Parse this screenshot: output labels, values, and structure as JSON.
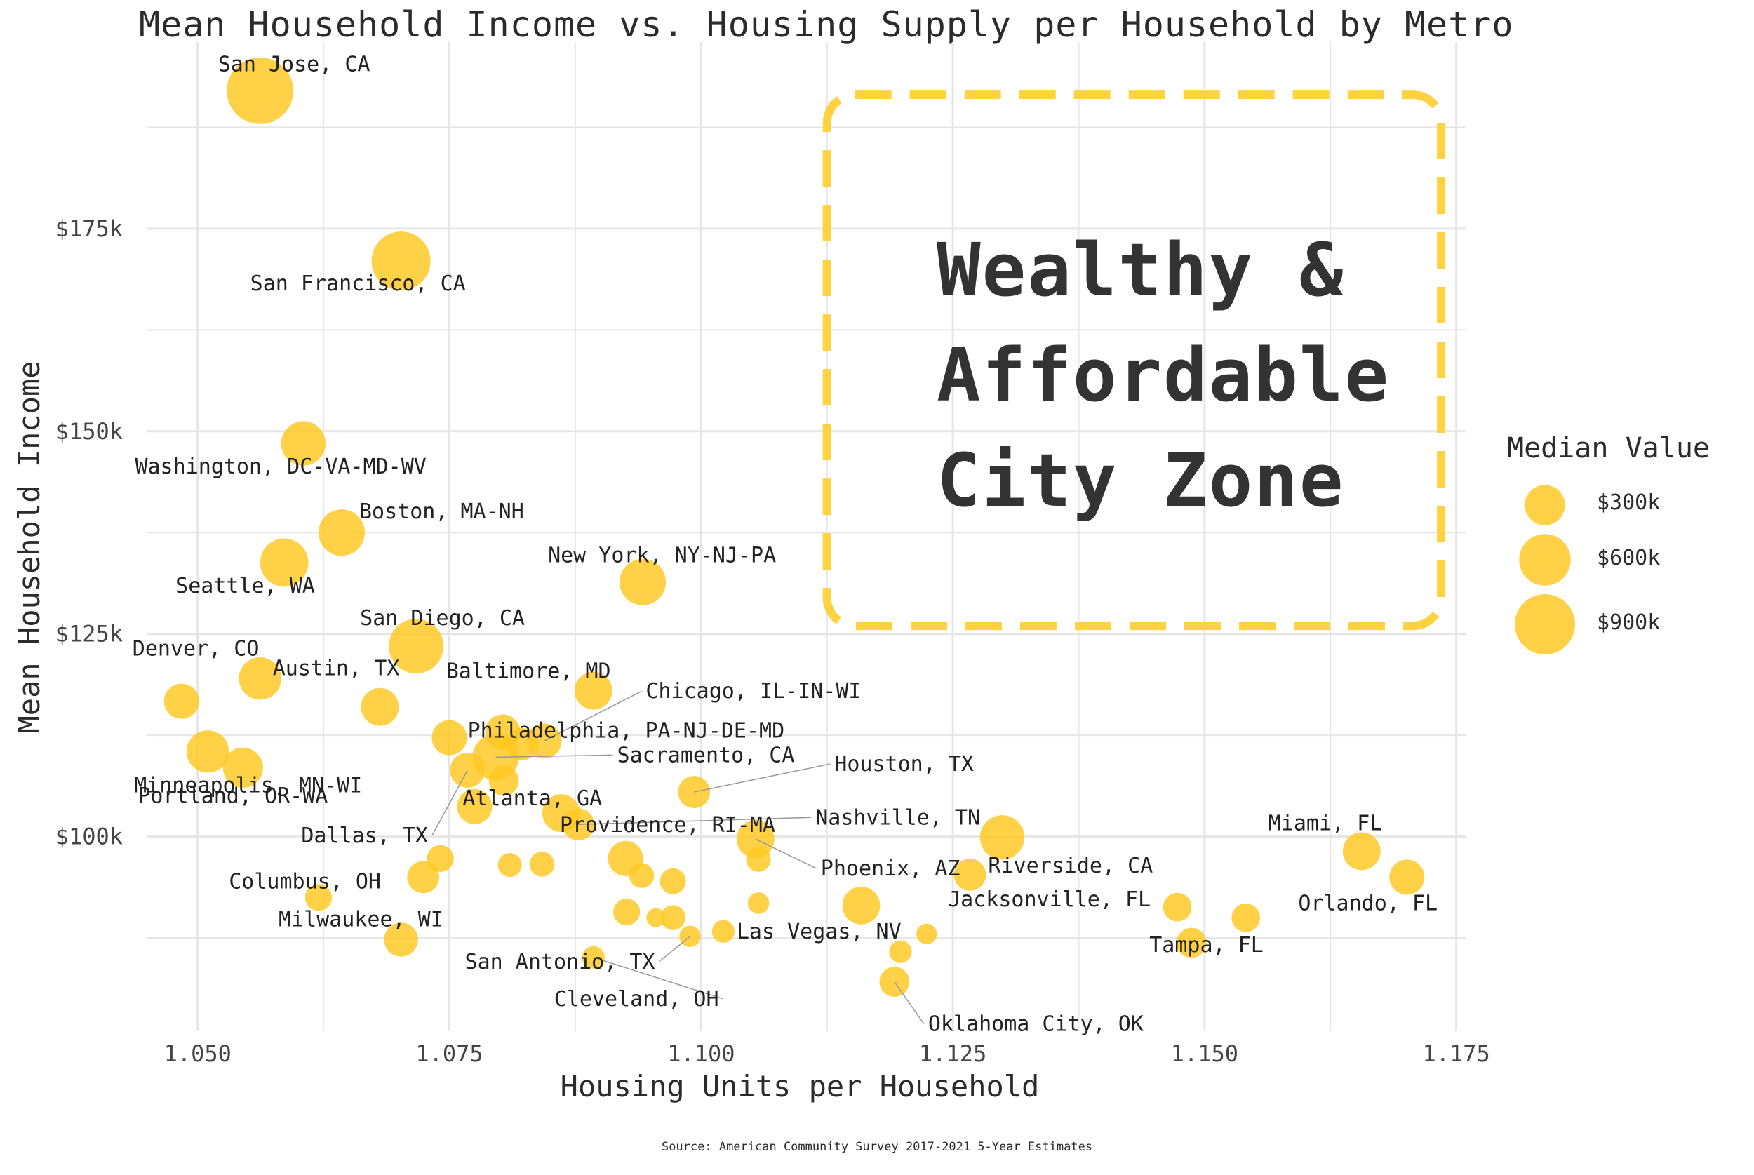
{
  "chart_data": {
    "type": "scatter",
    "title": "Mean Household Income vs. Housing Supply per Household by Metro",
    "xlabel": "Housing Units per Household",
    "ylabel": "Mean Household Income",
    "xlim": [
      1.045,
      1.176
    ],
    "ylim": [
      76000,
      198000
    ],
    "x_ticks": [
      "1.050",
      "1.075",
      "1.100",
      "1.125",
      "1.150",
      "1.175"
    ],
    "y_ticks": [
      "$100k",
      "$125k",
      "$150k",
      "$175k"
    ],
    "grid": true,
    "point_color": "#FFC71F",
    "size_legend": {
      "title": "Median Value",
      "entries": [
        {
          "label": "$300k",
          "value": 300000
        },
        {
          "label": "$600k",
          "value": 600000
        },
        {
          "label": "$900k",
          "value": 900000
        }
      ]
    },
    "annotation": {
      "text": "Wealthy &\nAffordable\nCity Zone",
      "x_range": [
        1.1125,
        1.1735
      ],
      "y_range": [
        126000,
        191500
      ],
      "style": "dashed rounded box"
    },
    "source": "Source: American Community Survey 2017-2021 5-Year Estimates",
    "points": [
      {
        "label": "San Jose, CA",
        "x": 1.0562,
        "y": 192000,
        "median_value": 1150000
      },
      {
        "label": "San Francisco, CA",
        "x": 1.0702,
        "y": 171000,
        "median_value": 850000
      },
      {
        "label": "Washington, DC-VA-MD-WV",
        "x": 1.0605,
        "y": 148500,
        "median_value": 400000
      },
      {
        "label": "Boston, MA-NH",
        "x": 1.0643,
        "y": 137500,
        "median_value": 450000
      },
      {
        "label": "Seattle, WA",
        "x": 1.0586,
        "y": 133800,
        "median_value": 500000
      },
      {
        "label": "New York, NY-NJ-PA",
        "x": 1.0942,
        "y": 131400,
        "median_value": 450000
      },
      {
        "label": "San Diego, CA",
        "x": 1.0717,
        "y": 123500,
        "median_value": 700000
      },
      {
        "label": "Denver, CO",
        "x": 1.0484,
        "y": 116700,
        "median_value": 200000
      },
      {
        "label": "Austin, TX",
        "x": 1.0562,
        "y": 119500,
        "median_value": 350000
      },
      {
        "label": "Baltimore, MD",
        "x": 1.0893,
        "y": 118000,
        "median_value": 250000
      },
      {
        "label": "Chicago, IL-IN-WI",
        "x": 1.0844,
        "y": 111800,
        "median_value": 200000
      },
      {
        "label": "Philadelphia, PA-NJ-DE-MD",
        "x": 1.0803,
        "y": 112900,
        "median_value": 200000
      },
      {
        "label": "Minneapolis, MN-WI",
        "x": 1.051,
        "y": 110500,
        "median_value": 350000
      },
      {
        "label": "Portland, OR-WA",
        "x": 1.0545,
        "y": 108500,
        "median_value": 300000
      },
      {
        "label": "Sacramento, CA",
        "x": 1.0796,
        "y": 109800,
        "median_value": 450000
      },
      {
        "label": "Houston, TX",
        "x": 1.0993,
        "y": 105500,
        "median_value": 150000
      },
      {
        "label": "Dallas, TX",
        "x": 1.0768,
        "y": 108200,
        "median_value": 200000
      },
      {
        "label": "Atlanta, GA",
        "x": 1.0775,
        "y": 103700,
        "median_value": 200000
      },
      {
        "label": "Nashville, TN",
        "x": 1.0878,
        "y": 101500,
        "median_value": 150000
      },
      {
        "label": "Providence, RI-MA",
        "x": 1.0861,
        "y": 102900,
        "median_value": 250000
      },
      {
        "label": "Phoenix, AZ",
        "x": 1.1054,
        "y": 99700,
        "median_value": 250000
      },
      {
        "label": "Riverside, CA",
        "x": 1.1299,
        "y": 99900,
        "median_value": 400000
      },
      {
        "label": "Miami, FL",
        "x": 1.1656,
        "y": 98200,
        "median_value": 250000
      },
      {
        "label": "Orlando, FL",
        "x": 1.1701,
        "y": 95000,
        "median_value": 200000
      },
      {
        "label": "Columbus, OH",
        "x": 1.0724,
        "y": 95000,
        "median_value": 150000
      },
      {
        "label": "Milwaukee, WI",
        "x": 1.062,
        "y": 92500,
        "median_value": 80000
      },
      {
        "label": "Jacksonville, FL",
        "x": 1.1473,
        "y": 91300,
        "median_value": 100000
      },
      {
        "label": "Tampa, FL",
        "x": 1.1487,
        "y": 86900,
        "median_value": 120000
      },
      {
        "label": "San Antonio, TX",
        "x": 1.0989,
        "y": 87700,
        "median_value": 30000
      },
      {
        "label": "Las Vegas, NV",
        "x": 1.1022,
        "y": 88300,
        "median_value": 40000
      },
      {
        "label": "Cleveland, OH",
        "x": 1.0893,
        "y": 85100,
        "median_value": 40000
      },
      {
        "label": "Oklahoma City, OK",
        "x": 1.1192,
        "y": 82100,
        "median_value": 120000
      },
      {
        "label": "",
        "x": 1.0681,
        "y": 116000,
        "median_value": 250000
      },
      {
        "label": "",
        "x": 1.075,
        "y": 112200,
        "median_value": 200000
      },
      {
        "label": "",
        "x": 1.0822,
        "y": 111400,
        "median_value": 150000
      },
      {
        "label": "",
        "x": 1.0804,
        "y": 106900,
        "median_value": 120000
      },
      {
        "label": "",
        "x": 1.0842,
        "y": 96600,
        "median_value": 60000
      },
      {
        "label": "",
        "x": 1.081,
        "y": 96500,
        "median_value": 50000
      },
      {
        "label": "",
        "x": 1.0741,
        "y": 97300,
        "median_value": 80000
      },
      {
        "label": "",
        "x": 1.0925,
        "y": 97300,
        "median_value": 200000
      },
      {
        "label": "",
        "x": 1.0941,
        "y": 95200,
        "median_value": 60000
      },
      {
        "label": "",
        "x": 1.0972,
        "y": 94500,
        "median_value": 70000
      },
      {
        "label": "",
        "x": 1.1057,
        "y": 97200,
        "median_value": 60000
      },
      {
        "label": "",
        "x": 1.1159,
        "y": 91500,
        "median_value": 250000
      },
      {
        "label": "",
        "x": 1.1267,
        "y": 95300,
        "median_value": 150000
      },
      {
        "label": "",
        "x": 1.1057,
        "y": 91800,
        "median_value": 30000
      },
      {
        "label": "",
        "x": 1.0926,
        "y": 90700,
        "median_value": 80000
      },
      {
        "label": "",
        "x": 1.0972,
        "y": 90000,
        "median_value": 60000
      },
      {
        "label": "",
        "x": 1.0955,
        "y": 90000,
        "median_value": 15000
      },
      {
        "label": "",
        "x": 1.1224,
        "y": 88000,
        "median_value": 25000
      },
      {
        "label": "",
        "x": 1.1198,
        "y": 85800,
        "median_value": 40000
      },
      {
        "label": "",
        "x": 1.1541,
        "y": 90000,
        "median_value": 100000
      },
      {
        "label": "",
        "x": 1.0702,
        "y": 87300,
        "median_value": 180000
      }
    ]
  }
}
